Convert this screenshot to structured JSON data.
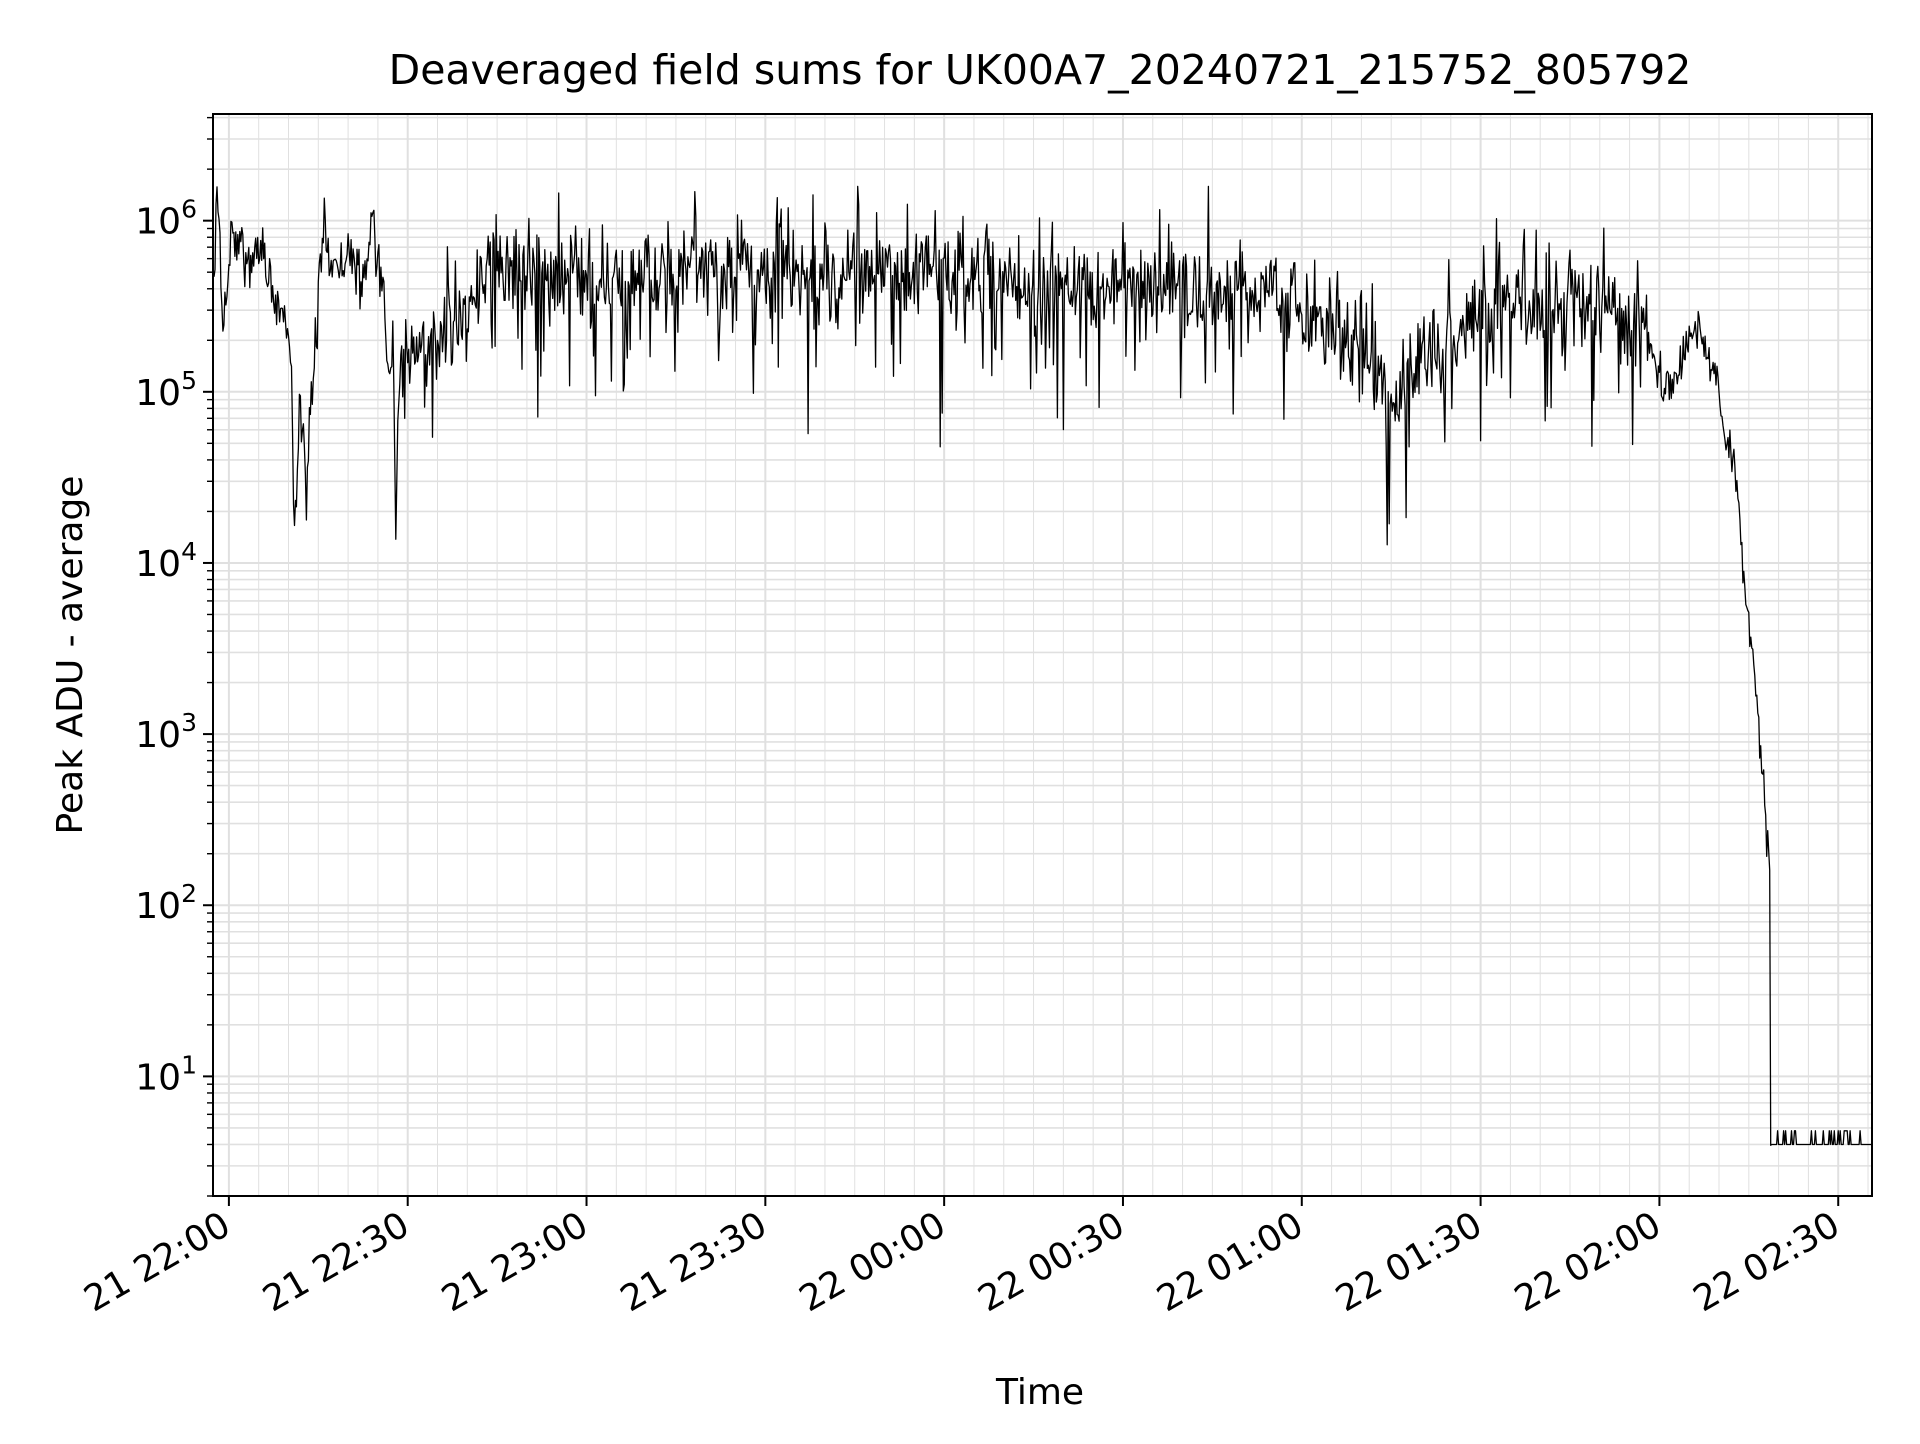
{
  "chart_data": {
    "type": "line",
    "title": "Deaveraged field sums for UK00A7_20240721_215752_805792",
    "xlabel": "Time",
    "ylabel": "Peak ADU - average",
    "x_unit": "datetime (2024-07-21 / 2024-07-22)",
    "xlim": [
      "2024-07-21 21:57:20",
      "2024-07-22 02:35:40"
    ],
    "x_tick_values": [
      "2024-07-21 22:00",
      "2024-07-21 22:30",
      "2024-07-21 23:00",
      "2024-07-21 23:30",
      "2024-07-22 00:00",
      "2024-07-22 00:30",
      "2024-07-22 01:00",
      "2024-07-22 01:30",
      "2024-07-22 02:00",
      "2024-07-22 02:30"
    ],
    "x_tick_labels": [
      "21 22:00",
      "21 22:30",
      "21 23:00",
      "21 23:30",
      "22 00:00",
      "22 00:30",
      "22 01:00",
      "22 01:30",
      "22 02:00",
      "22 02:30"
    ],
    "yscale": "log",
    "ylim": [
      2,
      4200000
    ],
    "y_tick_values": [
      10,
      100,
      1000,
      10000,
      100000,
      1000000
    ],
    "y_tick_labels": [
      {
        "base": "10",
        "exp": "1"
      },
      {
        "base": "10",
        "exp": "2"
      },
      {
        "base": "10",
        "exp": "3"
      },
      {
        "base": "10",
        "exp": "4"
      },
      {
        "base": "10",
        "exp": "5"
      },
      {
        "base": "10",
        "exp": "6"
      }
    ],
    "grid": "major and minor, both axes",
    "line_color": "#000000",
    "grid_color": "#e0e0e0",
    "series": [
      {
        "x": [
          "2024-07-21 21:57:30",
          "2024-07-21 21:58:00",
          "2024-07-21 21:59:00",
          "2024-07-21 22:00:30",
          "2024-07-21 22:02:00",
          "2024-07-21 22:03:30",
          "2024-07-21 22:05:00",
          "2024-07-21 22:07:00",
          "2024-07-21 22:09:00",
          "2024-07-21 22:10:30",
          "2024-07-21 22:11:00",
          "2024-07-21 22:11:30",
          "2024-07-21 22:12:00",
          "2024-07-21 22:12:30",
          "2024-07-21 22:13:00",
          "2024-07-21 22:13:30",
          "2024-07-21 22:14:00",
          "2024-07-21 22:14:30",
          "2024-07-21 22:15:00",
          "2024-07-21 22:16:00",
          "2024-07-21 22:16:30",
          "2024-07-21 22:17:00",
          "2024-07-21 22:18:30",
          "2024-07-21 22:20:00",
          "2024-07-21 22:22:00",
          "2024-07-21 22:23:00",
          "2024-07-21 22:24:00",
          "2024-07-21 22:25:00",
          "2024-07-21 22:26:00",
          "2024-07-21 22:26:30",
          "2024-07-21 22:27:00",
          "2024-07-21 22:27:30",
          "2024-07-21 22:28:00",
          "2024-07-21 22:28:30",
          "2024-07-21 22:29:00",
          "2024-07-21 22:30:00",
          "2024-07-21 22:40:00",
          "2024-07-21 22:45:00",
          "2024-07-21 22:50:00",
          "2024-07-21 23:00:00",
          "2024-07-21 23:30:00",
          "2024-07-22 00:00:00",
          "2024-07-22 00:30:00",
          "2024-07-22 00:55:00",
          "2024-07-22 01:00:00",
          "2024-07-22 01:10:00",
          "2024-07-22 01:15:00",
          "2024-07-22 01:20:00",
          "2024-07-22 01:30:00",
          "2024-07-22 01:36:00",
          "2024-07-22 01:40:00",
          "2024-07-22 01:45:00",
          "2024-07-22 01:50:00",
          "2024-07-22 01:55:00",
          "2024-07-22 01:58:00",
          "2024-07-22 02:00:00",
          "2024-07-22 02:02:00",
          "2024-07-22 02:04:00",
          "2024-07-22 02:06:00",
          "2024-07-22 02:08:00",
          "2024-07-22 02:09:00",
          "2024-07-22 02:10:00",
          "2024-07-22 02:11:00",
          "2024-07-22 02:12:00",
          "2024-07-22 02:13:00",
          "2024-07-22 02:14:00",
          "2024-07-22 02:15:00",
          "2024-07-22 02:16:00",
          "2024-07-22 02:17:00",
          "2024-07-22 02:17:30",
          "2024-07-22 02:18:00",
          "2024-07-22 02:18:30",
          "2024-07-22 02:18:40",
          "2024-07-22 02:18:50",
          "2024-07-22 02:35:40"
        ],
        "y": [
          300000,
          1900000,
          250000,
          800000,
          700000,
          500000,
          650000,
          400000,
          300000,
          150000,
          15000,
          40000,
          100000,
          60000,
          20000,
          70000,
          120000,
          200000,
          300000,
          1200000,
          600000,
          550000,
          600000,
          650000,
          450000,
          500000,
          1000000,
          600000,
          500000,
          150000,
          100000,
          200000,
          18000,
          100000,
          150000,
          180000,
          300000,
          600000,
          500000,
          450000,
          500000,
          450000,
          400000,
          350000,
          300000,
          200000,
          80000,
          150000,
          300000,
          400000,
          350000,
          300000,
          350000,
          250000,
          200000,
          120000,
          100000,
          150000,
          250000,
          180000,
          150000,
          100000,
          50000,
          40000,
          30000,
          10000,
          5000,
          2000,
          900,
          500,
          250,
          170,
          4,
          4,
          4
        ],
        "noise": "high-frequency jitter between ~1e5 and ~1.4e6 from 22:29 to 01:58; flat at ~4 with tiny spikes after 02:18"
      }
    ]
  }
}
